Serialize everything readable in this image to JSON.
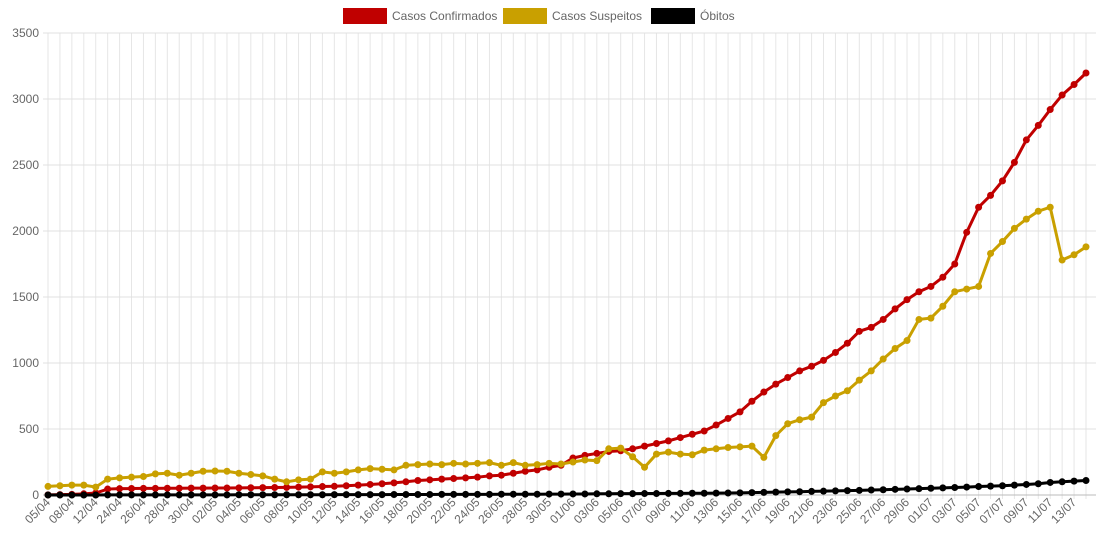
{
  "chart_data": {
    "type": "line",
    "categories": [
      "05/04",
      null,
      "08/04",
      null,
      "12/04",
      null,
      "24/04",
      null,
      "26/04",
      null,
      "28/04",
      null,
      "30/04",
      null,
      "02/05",
      null,
      "04/05",
      null,
      "06/05",
      null,
      "08/05",
      null,
      "10/05",
      null,
      "12/05",
      null,
      "14/05",
      null,
      "16/05",
      null,
      "18/05",
      null,
      "20/05",
      null,
      "22/05",
      null,
      "24/05",
      null,
      "26/05",
      null,
      "28/05",
      null,
      "30/05",
      null,
      "01/06",
      null,
      "03/06",
      null,
      "05/06",
      null,
      "07/06",
      null,
      "09/06",
      null,
      "11/06",
      null,
      "13/06",
      null,
      "15/06",
      null,
      "17/06",
      null,
      "19/06",
      null,
      "21/06",
      null,
      "23/06",
      null,
      "25/06",
      null,
      "27/06",
      null,
      "29/06",
      null,
      "01/07",
      null,
      "03/07",
      null,
      "05/07",
      null,
      "07/07",
      null,
      "09/07",
      null,
      "11/07",
      null,
      "13/07",
      null
    ],
    "series": [
      {
        "name": "Casos Confirmados",
        "color": "#c00000",
        "values": [
          1,
          3,
          5,
          9,
          15,
          45,
          48,
          49,
          50,
          50,
          51,
          51,
          52,
          52,
          53,
          53,
          54,
          55,
          56,
          57,
          58,
          60,
          62,
          64,
          66,
          70,
          75,
          80,
          85,
          92,
          100,
          110,
          115,
          120,
          125,
          130,
          135,
          145,
          150,
          165,
          180,
          190,
          210,
          225,
          280,
          300,
          315,
          330,
          335,
          350,
          370,
          390,
          410,
          435,
          460,
          485,
          530,
          580,
          630,
          710,
          780,
          840,
          890,
          940,
          975,
          1020,
          1080,
          1150,
          1240,
          1270,
          1330,
          1410,
          1480,
          1540,
          1580,
          1650,
          1750,
          1990,
          2180,
          2270,
          2380,
          2520,
          2690,
          2800,
          2920,
          3030,
          3110,
          3197
        ]
      },
      {
        "name": "Casos Suspeitos",
        "color": "#c9a000",
        "values": [
          65,
          70,
          75,
          75,
          60,
          120,
          130,
          135,
          140,
          160,
          165,
          150,
          165,
          180,
          182,
          180,
          165,
          155,
          145,
          120,
          100,
          115,
          120,
          175,
          165,
          175,
          190,
          200,
          195,
          190,
          225,
          230,
          235,
          230,
          240,
          235,
          240,
          245,
          225,
          245,
          225,
          230,
          240,
          235,
          250,
          265,
          260,
          350,
          355,
          290,
          210,
          310,
          325,
          310,
          305,
          340,
          350,
          360,
          365,
          370,
          285,
          450,
          540,
          570,
          590,
          700,
          750,
          790,
          870,
          940,
          1030,
          1110,
          1170,
          1330,
          1340,
          1430,
          1540,
          1560,
          1580,
          1830,
          1920,
          2020,
          2090,
          2150,
          2180,
          1780,
          1820,
          1880
        ]
      },
      {
        "name": "Óbitos",
        "color": "#000000",
        "values": [
          0,
          0,
          0,
          0,
          0,
          1,
          1,
          1,
          1,
          1,
          1,
          1,
          1,
          1,
          1,
          1,
          2,
          2,
          2,
          2,
          2,
          2,
          2,
          2,
          3,
          3,
          3,
          3,
          3,
          4,
          4,
          4,
          4,
          5,
          5,
          5,
          5,
          5,
          6,
          6,
          6,
          6,
          7,
          7,
          8,
          8,
          9,
          9,
          10,
          10,
          11,
          11,
          12,
          12,
          13,
          13,
          14,
          15,
          16,
          18,
          20,
          22,
          24,
          25,
          27,
          29,
          31,
          33,
          35,
          38,
          40,
          43,
          45,
          48,
          51,
          54,
          57,
          60,
          64,
          67,
          70,
          75,
          80,
          85,
          95,
          100,
          105,
          110
        ]
      }
    ],
    "ylim": [
      0,
      3500
    ],
    "yticks": [
      0,
      500,
      1000,
      1500,
      2000,
      2500,
      3000,
      3500
    ],
    "grid": true,
    "legend": "top"
  }
}
